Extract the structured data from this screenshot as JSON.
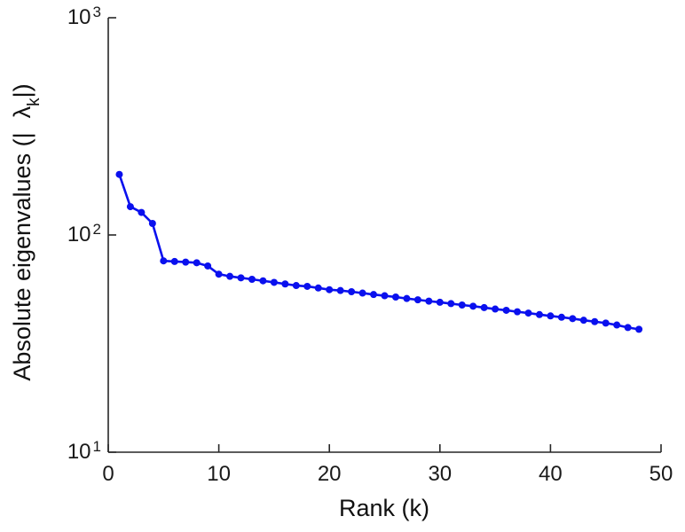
{
  "figure": {
    "background": "#ffffff",
    "axis_color": "#262626",
    "tick_label_color": "#1a1a1a"
  },
  "chart_data": {
    "type": "line",
    "title": "",
    "xlabel": "Rank (k)",
    "ylabel": {
      "prefix": "Absolute eigenvalues (|",
      "symbol": "λ",
      "subscript": "k",
      "suffix": "|)"
    },
    "line_color": "#0a10ee",
    "marker": "circle",
    "grid": false,
    "legend": null,
    "xlim": [
      0,
      50
    ],
    "ylog_lim": [
      1,
      3
    ],
    "x_ticks": [
      "0",
      "10",
      "20",
      "30",
      "40",
      "50"
    ],
    "y_ticks": [
      {
        "base": "10",
        "exp": "1"
      },
      {
        "base": "10",
        "exp": "2"
      },
      {
        "base": "10",
        "exp": "3"
      }
    ],
    "x": [
      1,
      2,
      3,
      4,
      5,
      6,
      7,
      8,
      9,
      10,
      11,
      12,
      13,
      14,
      15,
      16,
      17,
      18,
      19,
      20,
      21,
      22,
      23,
      24,
      25,
      26,
      27,
      28,
      29,
      30,
      31,
      32,
      33,
      34,
      35,
      36,
      37,
      38,
      39,
      40,
      41,
      42,
      43,
      44,
      45,
      46,
      47,
      48
    ],
    "values": [
      190,
      135,
      127,
      113,
      76,
      75.5,
      75,
      74.5,
      72,
      66,
      64.5,
      63.5,
      62.5,
      61.5,
      60.5,
      59.5,
      58.5,
      58,
      57,
      56,
      55.5,
      54.8,
      54,
      53.2,
      52.5,
      51.8,
      51,
      50.3,
      49.6,
      49,
      48.3,
      47.6,
      47,
      46.3,
      45.6,
      45,
      44.3,
      43.7,
      43,
      42.4,
      41.8,
      41.2,
      40.5,
      39.9,
      39.3,
      38.5,
      37.5,
      36.8
    ]
  }
}
